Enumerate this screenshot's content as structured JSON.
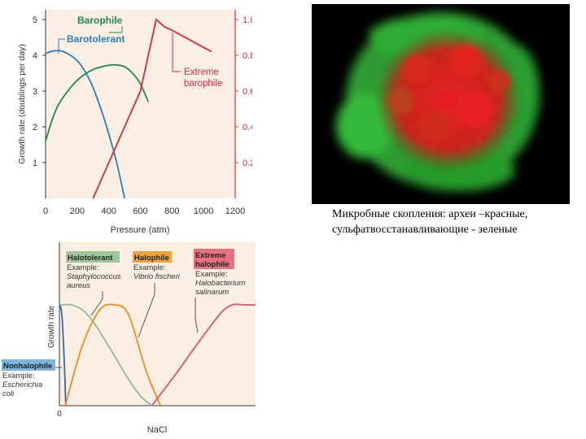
{
  "chart_data": [
    {
      "type": "line",
      "title": "",
      "xlabel": "Pressure (atm)",
      "ylabel": "Growth rate (doublings per day)",
      "ylabel_right": "",
      "xlim": [
        0,
        1200
      ],
      "ylim": [
        0,
        5
      ],
      "ylim_right": [
        0,
        1.0
      ],
      "x_ticks": [
        "0",
        "200",
        "400",
        "600",
        "800",
        "1000",
        "1200"
      ],
      "y_ticks_left": [
        "1",
        "2",
        "3",
        "4",
        "5"
      ],
      "y_ticks_right": [
        "0.2",
        "0.4",
        "0.6",
        "0.8",
        "1.0"
      ],
      "series": [
        {
          "name": "Barotolerant",
          "axis": "left",
          "color": "#2a7ec0",
          "x": [
            0,
            50,
            100,
            150,
            200,
            250,
            300,
            350,
            400,
            450,
            500
          ],
          "y": [
            4.05,
            4.12,
            4.12,
            4.02,
            3.85,
            3.55,
            3.1,
            2.5,
            1.8,
            1.0,
            0.0
          ]
        },
        {
          "name": "Barophile",
          "axis": "left",
          "color": "#1f8a4c",
          "x": [
            0,
            50,
            100,
            200,
            300,
            400,
            450,
            500,
            550,
            600,
            650
          ],
          "y": [
            1.6,
            2.3,
            2.75,
            3.3,
            3.6,
            3.72,
            3.73,
            3.68,
            3.5,
            3.2,
            2.7
          ]
        },
        {
          "name": "Extreme barophile",
          "label_lines": [
            "Extreme",
            "barophile"
          ],
          "axis": "right",
          "color": "#e0263a",
          "x": [
            300,
            500,
            600,
            700,
            750,
            800,
            1050
          ],
          "y": [
            0.0,
            0.4,
            0.6,
            1.0,
            0.96,
            0.94,
            0.82
          ]
        }
      ]
    },
    {
      "type": "line",
      "title": "",
      "xlabel": "NaCl",
      "ylabel": "Growth rate",
      "x_ticks": [
        "0"
      ],
      "series": [
        {
          "name": "Nonhalophile",
          "color": "#2a6db5",
          "label_bg": "#7fb4dd",
          "example_label": "Example:",
          "example_lines": [
            "Escherichia",
            "coli"
          ],
          "x": [
            0,
            0.02,
            0.05,
            0.09,
            0.11
          ],
          "y": [
            1.0,
            0.98,
            0.85,
            0.35,
            0.0
          ]
        },
        {
          "name": "Halotolerant",
          "color": "#8fb89a",
          "label_bg": "#9ec79a",
          "example_label": "Example:",
          "example_lines": [
            "Staphylococcus",
            "aureus"
          ],
          "x": [
            0,
            0.2,
            0.4,
            0.6,
            0.8,
            1.0,
            1.2,
            1.4,
            1.6
          ],
          "y": [
            1.0,
            1.0,
            0.95,
            0.82,
            0.64,
            0.45,
            0.26,
            0.1,
            0.0
          ]
        },
        {
          "name": "Halophile",
          "color": "#f08c1a",
          "label_bg": "#f3a23a",
          "example_label": "Example:",
          "example_lines": [
            "Vibrio fischeri"
          ],
          "x": [
            0.1,
            0.4,
            0.7,
            0.95,
            1.2,
            1.5,
            1.75
          ],
          "y": [
            0.0,
            0.6,
            0.95,
            1.0,
            0.9,
            0.35,
            0.0
          ]
        },
        {
          "name": "Extreme halophile",
          "label_lines": [
            "Extreme",
            "halophile"
          ],
          "color": "#e25463",
          "label_bg": "#e6707d",
          "example_label": "Example:",
          "example_lines": [
            "Halobacterium",
            "salinarum"
          ],
          "x": [
            1.6,
            2.0,
            2.4,
            2.8,
            3.0,
            3.2,
            3.4
          ],
          "y": [
            0.0,
            0.3,
            0.62,
            0.92,
            1.0,
            1.0,
            1.0
          ]
        }
      ]
    }
  ],
  "figure": {
    "caption_lines": [
      "Микробные скопления: археи –красные,",
      "сульфатвосстанавливающие - зеленые"
    ]
  }
}
